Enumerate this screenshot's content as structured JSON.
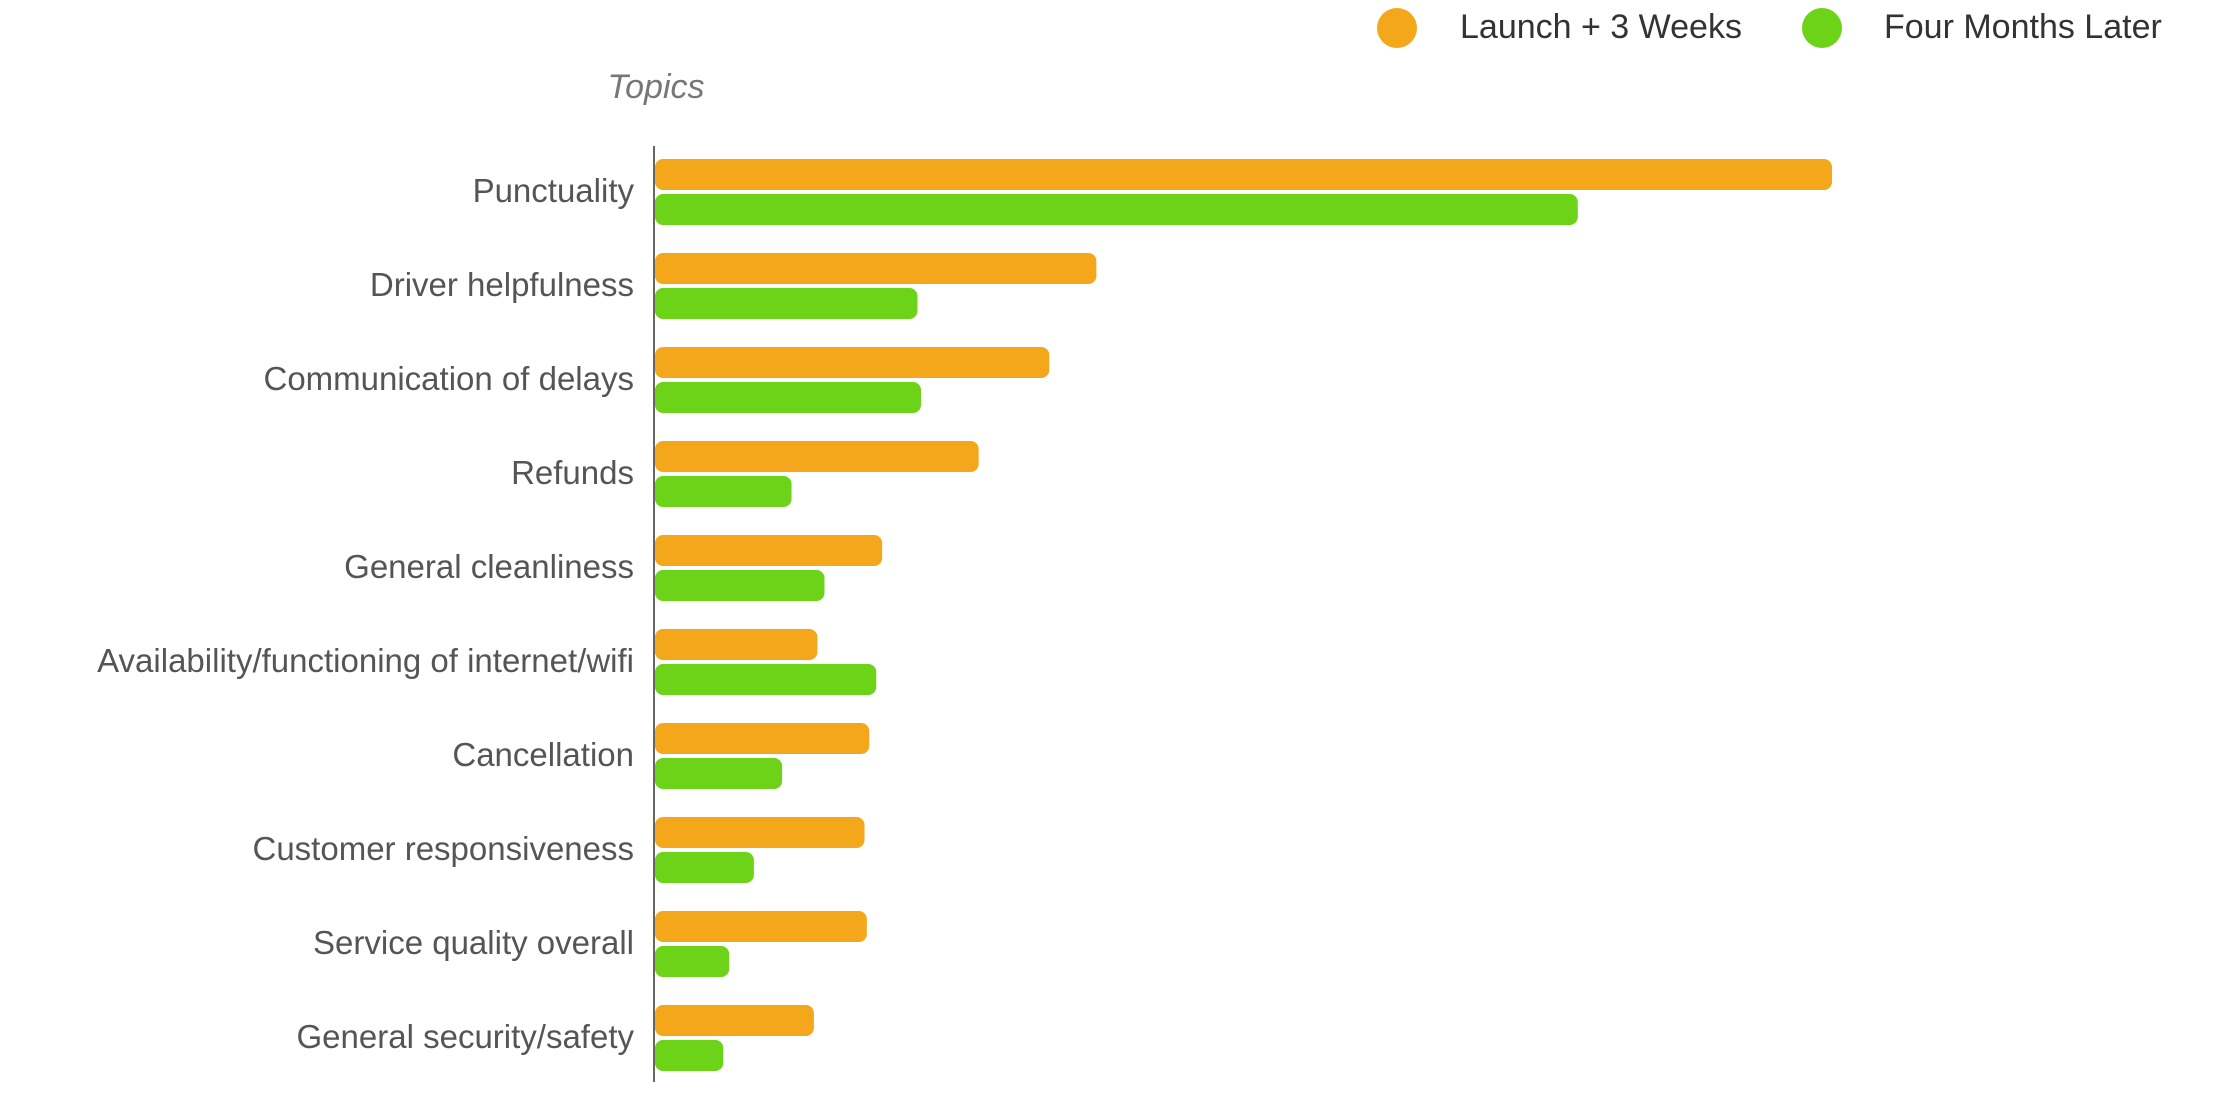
{
  "chart_data": {
    "type": "bar",
    "orientation": "horizontal",
    "ylabel": "Topics",
    "xlabel": "",
    "title": "",
    "xlim": [
      0,
      100
    ],
    "grid": false,
    "legend_position": "top-right",
    "categories": [
      "Punctuality",
      "Driver helpfulness",
      "Communication of delays",
      "Refunds",
      "General cleanliness",
      "Availability/functioning of internet/wifi",
      "Cancellation",
      "Customer responsiveness",
      "Service quality overall",
      "General security/safety"
    ],
    "series": [
      {
        "name": "Launch + 3 Weeks",
        "color": "#F5A71C",
        "values": [
          100,
          37.5,
          33.5,
          27.5,
          19.3,
          13.8,
          18.2,
          17.8,
          18,
          13.5
        ]
      },
      {
        "name": "Four Months Later",
        "color": "#6DD318",
        "values": [
          78.4,
          22.3,
          22.6,
          11.6,
          14.4,
          18.8,
          10.8,
          8.4,
          6.3,
          5.8
        ]
      }
    ]
  }
}
